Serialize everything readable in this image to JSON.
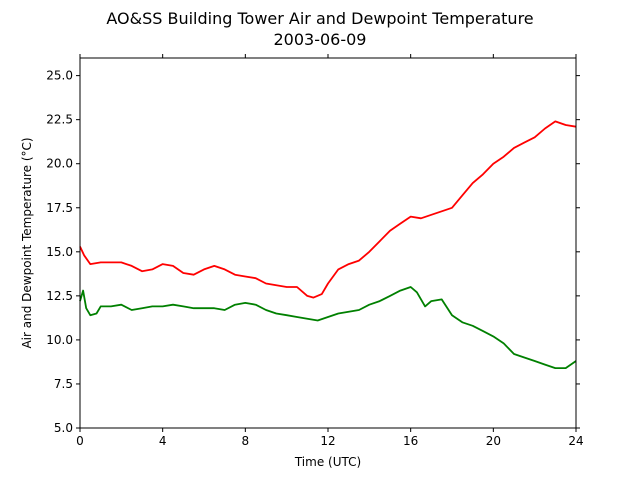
{
  "chart_data": {
    "type": "line",
    "title": "AO&SS Building Tower Air and Dewpoint Temperature",
    "subtitle": "2003-06-09",
    "xlabel": "Time (UTC)",
    "ylabel": "Air and Dewpoint Temperature (°C)",
    "xlim": [
      0,
      24
    ],
    "ylim": [
      5.0,
      26.0
    ],
    "xticks": [
      "0",
      "4",
      "8",
      "12",
      "16",
      "20",
      "24"
    ],
    "yticks": [
      "5.0",
      "7.5",
      "10.0",
      "12.5",
      "15.0",
      "17.5",
      "20.0",
      "22.5",
      "25.0"
    ],
    "grid": false,
    "series": [
      {
        "color": "#ff0000",
        "x": [
          0,
          0.2,
          0.5,
          1,
          1.5,
          2,
          2.5,
          3,
          3.5,
          4,
          4.5,
          5,
          5.5,
          6,
          6.5,
          7,
          7.5,
          8,
          8.5,
          9,
          9.5,
          10,
          10.5,
          11,
          11.3,
          11.7,
          12,
          12.5,
          13,
          13.5,
          14,
          14.5,
          15,
          15.5,
          16,
          16.5,
          17,
          17.5,
          18,
          18.5,
          19,
          19.5,
          20,
          20.5,
          21,
          21.5,
          22,
          22.5,
          23,
          23.5,
          24
        ],
        "y": [
          15.3,
          14.8,
          14.3,
          14.4,
          14.4,
          14.4,
          14.2,
          13.9,
          14.0,
          14.3,
          14.2,
          13.8,
          13.7,
          14.0,
          14.2,
          14.0,
          13.7,
          13.6,
          13.5,
          13.2,
          13.1,
          13.0,
          13.0,
          12.5,
          12.4,
          12.6,
          13.2,
          14.0,
          14.3,
          14.5,
          15.0,
          15.6,
          16.2,
          16.6,
          17.0,
          16.9,
          17.1,
          17.3,
          17.5,
          18.2,
          18.9,
          19.4,
          20.0,
          20.4,
          20.9,
          21.2,
          21.5,
          22.0,
          22.4,
          22.2,
          22.1
        ]
      },
      {
        "color": "#008000",
        "x": [
          0,
          0.15,
          0.3,
          0.5,
          0.8,
          1,
          1.5,
          2,
          2.5,
          3,
          3.5,
          4,
          4.5,
          5,
          5.5,
          6,
          6.5,
          7,
          7.5,
          8,
          8.5,
          9,
          9.5,
          10,
          10.5,
          11,
          11.5,
          12,
          12.5,
          13,
          13.5,
          14,
          14.5,
          15,
          15.5,
          16,
          16.3,
          16.7,
          17,
          17.5,
          18,
          18.5,
          19,
          19.5,
          20,
          20.5,
          21,
          21.5,
          22,
          22.5,
          23,
          23.5,
          24
        ],
        "y": [
          12.2,
          12.8,
          11.8,
          11.4,
          11.5,
          11.9,
          11.9,
          12.0,
          11.7,
          11.8,
          11.9,
          11.9,
          12.0,
          11.9,
          11.8,
          11.8,
          11.8,
          11.7,
          12.0,
          12.1,
          12.0,
          11.7,
          11.5,
          11.4,
          11.3,
          11.2,
          11.1,
          11.3,
          11.5,
          11.6,
          11.7,
          12.0,
          12.2,
          12.5,
          12.8,
          13.0,
          12.7,
          11.9,
          12.2,
          12.3,
          11.4,
          11.0,
          10.8,
          10.5,
          10.2,
          9.8,
          9.2,
          9.0,
          8.8,
          8.6,
          8.4,
          8.4,
          8.8
        ]
      }
    ]
  }
}
